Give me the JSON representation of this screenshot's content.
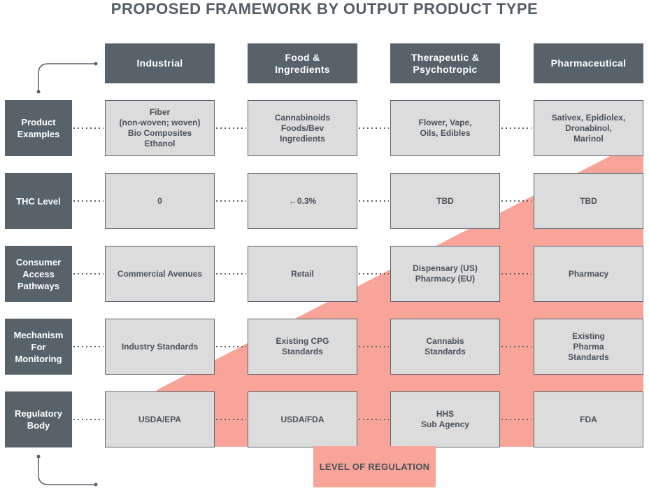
{
  "title": "PROPOSED FRAMEWORK BY OUTPUT PRODUCT TYPE",
  "columns": [
    "Industrial",
    "Food &\nIngredients",
    "Therapeutic &\nPsychotropic",
    "Pharmaceutical"
  ],
  "rows": [
    {
      "label": "Product\nExamples",
      "cells": [
        "Fiber\n(non-woven; woven)\nBio Composites\nEthanol",
        "Cannabinoids\nFoods/Bev\nIngredients",
        "Flower, Vape,\nOils, Edibles",
        "Sativex, Epidiolex,\nDronabinol,\nMarinol"
      ]
    },
    {
      "label": "THC Level",
      "cells": [
        "0",
        "←0.3%",
        "TBD",
        "TBD"
      ]
    },
    {
      "label": "Consumer\nAccess\nPathways",
      "cells": [
        "Commercial Avenues",
        "Retail",
        "Dispensary (US)\nPharmacy (EU)",
        "Pharmacy"
      ]
    },
    {
      "label": "Mechanism\nFor\nMonitoring",
      "cells": [
        "Industry Standards",
        "Existing CPG\nStandards",
        "Cannabis\nStandards",
        "Existing\nPharma\nStandards"
      ]
    },
    {
      "label": "Regulatory\nBody",
      "cells": [
        "USDA/EPA",
        "USDA/FDA",
        "HHS\nSub Agency",
        "FDA"
      ]
    }
  ],
  "level_label": "LEVEL OF REGULATION",
  "colors": {
    "dark": "#58626b",
    "cell": "#dcdcdd",
    "salmon": "#f8a498",
    "text": "#4a525a"
  }
}
